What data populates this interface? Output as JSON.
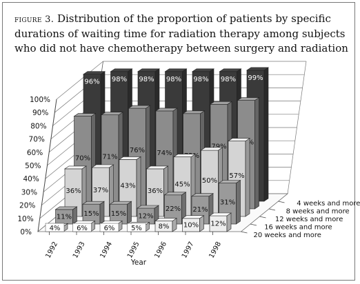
{
  "figure": {
    "label": "figure 3.",
    "caption": "Distribution of the proportion of patients by specific durations of waiting time for radiation therapy among subjects who did not have chemotherapy between surgery and radiation"
  },
  "chart_data": {
    "type": "bar",
    "categories": [
      "1992",
      "1993",
      "1994",
      "1995",
      "1996",
      "1997",
      "1998"
    ],
    "series": [
      {
        "name": "4 weeks and more",
        "values": [
          96,
          98,
          98,
          98,
          98,
          98,
          99
        ],
        "color": "#3a3a3a",
        "labelColor": "#ffffff"
      },
      {
        "name": "8 weeks and more",
        "values": [
          70,
          71,
          76,
          74,
          72,
          79,
          82
        ],
        "color": "#8c8c8c",
        "labelColor": "#111111"
      },
      {
        "name": "12 weeks and more",
        "values": [
          36,
          37,
          43,
          36,
          45,
          50,
          57
        ],
        "color": "#d4d4d4",
        "labelColor": "#111111"
      },
      {
        "name": "16 weeks and more",
        "values": [
          11,
          15,
          15,
          12,
          22,
          21,
          31
        ],
        "color": "#9a9a9a",
        "labelColor": "#111111"
      },
      {
        "name": "20 weeks and more",
        "values": [
          4,
          6,
          6,
          5,
          8,
          10,
          12
        ],
        "color": "#eeeeee",
        "labelColor": "#111111"
      }
    ],
    "data_labels": [
      [
        "96%",
        "98%",
        "98%",
        "98%",
        "98%",
        "98%",
        "99%"
      ],
      [
        "70%",
        "71%",
        "76%",
        "74%",
        "72%",
        "79%",
        "82%"
      ],
      [
        "36%",
        "37%",
        "43%",
        "36%",
        "45%",
        "50%",
        "57%"
      ],
      [
        "11%",
        "15%",
        "15%",
        "12%",
        "22%",
        "21%",
        "31%"
      ],
      [
        "4%",
        "6%",
        "6%",
        "5%",
        "8%",
        "10%",
        "12%"
      ]
    ],
    "y_ticks": [
      "0%",
      "10%",
      "20%",
      "30%",
      "40%",
      "50%",
      "60%",
      "70%",
      "80%",
      "90%",
      "100%"
    ],
    "ylim": [
      0,
      100
    ],
    "xlabel": "Year",
    "ylabel": "",
    "grid": true,
    "legend": "series labels along right depth axis"
  }
}
